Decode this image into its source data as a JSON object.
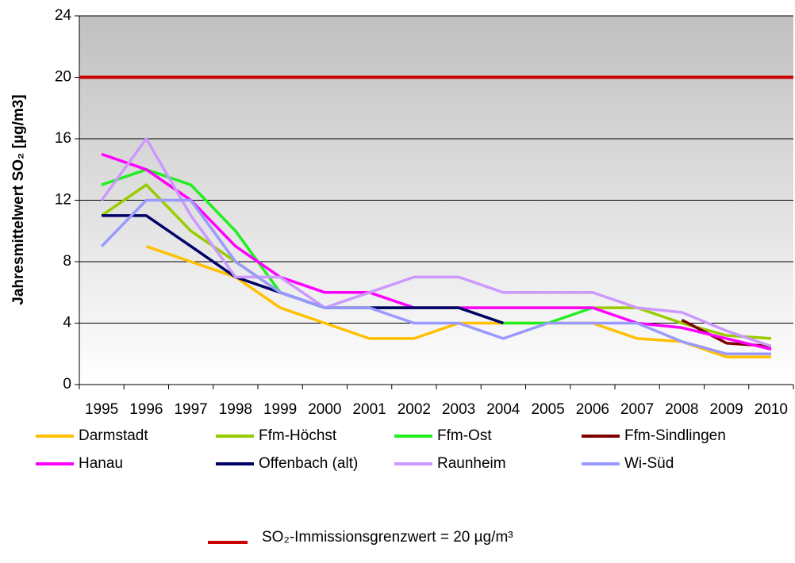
{
  "chart_data": {
    "type": "line",
    "y_label": "Jahresmittelwert SO₂ [µg/m3]",
    "categories": [
      "1995",
      "1996",
      "1997",
      "1998",
      "1999",
      "2000",
      "2001",
      "2002",
      "2003",
      "2004",
      "2005",
      "2006",
      "2007",
      "2008",
      "2009",
      "2010"
    ],
    "ylim": [
      0,
      24
    ],
    "yticks": [
      0,
      4,
      8,
      12,
      16,
      20,
      24
    ],
    "grid": true,
    "series": [
      {
        "name": "Darmstadt",
        "color": "#ffc000",
        "values": [
          null,
          9,
          8,
          7,
          5,
          4,
          3,
          3,
          4,
          4,
          4,
          4,
          3,
          2.8,
          1.8,
          1.8
        ]
      },
      {
        "name": "Ffm-Höchst",
        "color": "#99cc00",
        "values": [
          11,
          13,
          10,
          8,
          6,
          5,
          5,
          5,
          5,
          5,
          5,
          5,
          5,
          4,
          3.2,
          3
        ]
      },
      {
        "name": "Ffm-Ost",
        "color": "#22ee22",
        "values": [
          13,
          14,
          13,
          10,
          6,
          5,
          5,
          5,
          5,
          4,
          4,
          5,
          null,
          null,
          null,
          null
        ]
      },
      {
        "name": "Ffm-Sindlingen",
        "color": "#800000",
        "values": [
          null,
          null,
          null,
          null,
          null,
          null,
          null,
          null,
          null,
          null,
          null,
          null,
          null,
          4.2,
          2.7,
          2.5
        ]
      },
      {
        "name": "Hanau",
        "color": "#ff00ff",
        "values": [
          15,
          14,
          12,
          9,
          7,
          6,
          6,
          5,
          5,
          5,
          5,
          5,
          4,
          3.7,
          3,
          2.3
        ]
      },
      {
        "name": "Offenbach (alt)",
        "color": "#000066",
        "values": [
          11,
          11,
          9,
          7,
          6,
          5,
          5,
          5,
          5,
          4,
          null,
          null,
          null,
          null,
          null,
          null
        ]
      },
      {
        "name": "Raunheim",
        "color": "#cc99ff",
        "values": [
          12,
          16,
          11,
          7,
          7,
          5,
          6,
          7,
          7,
          6,
          6,
          6,
          5,
          4.7,
          3.5,
          2.5
        ]
      },
      {
        "name": "Wi-Süd",
        "color": "#9999ff",
        "values": [
          9,
          12,
          12,
          8,
          6,
          5,
          5,
          4,
          4,
          3,
          4,
          4,
          4,
          2.8,
          2,
          2
        ]
      }
    ],
    "limit": {
      "label": "SO₂-Immissionsgrenzwert = 20 µg/m³",
      "value": 20,
      "color": "#cc0000"
    }
  }
}
